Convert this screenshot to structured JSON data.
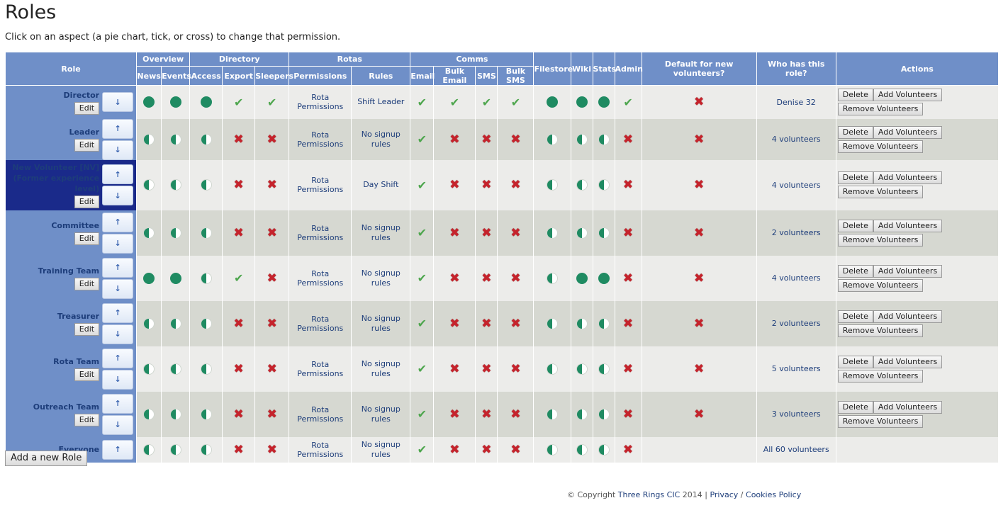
{
  "page": {
    "title": "Roles",
    "intro": "Click on an aspect (a pie chart, tick, or cross) to change that permission.",
    "add_role_label": "Add a new Role"
  },
  "headers": {
    "role": "Role",
    "overview": "Overview",
    "directory": "Directory",
    "rotas": "Rotas",
    "comms": "Comms",
    "filestore": "Filestore",
    "wiki": "Wiki",
    "stats": "Stats",
    "admin": "Admin",
    "default": "Default for new volunteers?",
    "who": "Who has this role?",
    "actions": "Actions",
    "news": "News",
    "events": "Events",
    "access": "Access",
    "export": "Export",
    "sleepers": "Sleepers",
    "permissions": "Permissions",
    "rules": "Rules",
    "email": "Email",
    "bulk_email": "Bulk Email",
    "sms": "SMS",
    "bulk_sms": "Bulk SMS"
  },
  "labels": {
    "edit": "Edit",
    "delete": "Delete",
    "add_volunteers": "Add Volunteers",
    "remove_volunteers": "Remove Volunteers",
    "up": "↑",
    "down": "↓",
    "rota_permissions": "Rota Permissions"
  },
  "colors": {
    "header": "#6f8fc8",
    "selected_role": "#1a2a8a",
    "pie": "#1f8b62",
    "tick": "#4ea64e",
    "cross": "#c6232c"
  },
  "roles": [
    {
      "name": "Director",
      "rules": "Shift Leader",
      "who": "Denise 32",
      "news": "full",
      "events": "full",
      "access": "full",
      "export": "tick",
      "sleepers": "tick",
      "email": "tick",
      "bulk_email": "tick",
      "sms": "tick",
      "bulk_sms": "tick",
      "filestore": "full",
      "wiki": "full",
      "stats": "full",
      "admin": "tick",
      "default": "cross"
    },
    {
      "name": "Leader",
      "rules": "No signup rules",
      "who": "4 volunteers",
      "news": "half",
      "events": "half",
      "access": "half",
      "export": "cross",
      "sleepers": "cross",
      "email": "tick",
      "bulk_email": "cross",
      "sms": "cross",
      "bulk_sms": "cross",
      "filestore": "half",
      "wiki": "half",
      "stats": "half",
      "admin": "cross",
      "default": "cross"
    },
    {
      "name": "New Volunteer [NV] (Former experience level)",
      "rules": "Day Shift",
      "who": "4 volunteers",
      "news": "half",
      "events": "half",
      "access": "half",
      "export": "cross",
      "sleepers": "cross",
      "email": "tick",
      "bulk_email": "cross",
      "sms": "cross",
      "bulk_sms": "cross",
      "filestore": "half",
      "wiki": "half",
      "stats": "half",
      "admin": "cross",
      "default": "cross"
    },
    {
      "name": "Committee",
      "rules": "No signup rules",
      "who": "2 volunteers",
      "news": "half",
      "events": "half",
      "access": "half",
      "export": "cross",
      "sleepers": "cross",
      "email": "tick",
      "bulk_email": "cross",
      "sms": "cross",
      "bulk_sms": "cross",
      "filestore": "half",
      "wiki": "half",
      "stats": "half",
      "admin": "cross",
      "default": "cross"
    },
    {
      "name": "Training Team",
      "rules": "No signup rules",
      "who": "4 volunteers",
      "news": "full",
      "events": "full",
      "access": "half",
      "export": "tick",
      "sleepers": "cross",
      "email": "tick",
      "bulk_email": "cross",
      "sms": "cross",
      "bulk_sms": "cross",
      "filestore": "half",
      "wiki": "full",
      "stats": "full",
      "admin": "cross",
      "default": "cross"
    },
    {
      "name": "Treasurer",
      "rules": "No signup rules",
      "who": "2 volunteers",
      "news": "half",
      "events": "half",
      "access": "half",
      "export": "cross",
      "sleepers": "cross",
      "email": "tick",
      "bulk_email": "cross",
      "sms": "cross",
      "bulk_sms": "cross",
      "filestore": "half",
      "wiki": "half",
      "stats": "half",
      "admin": "cross",
      "default": "cross"
    },
    {
      "name": "Rota Team",
      "rules": "No signup rules",
      "who": "5 volunteers",
      "news": "half",
      "events": "half",
      "access": "half",
      "export": "cross",
      "sleepers": "cross",
      "email": "tick",
      "bulk_email": "cross",
      "sms": "cross",
      "bulk_sms": "cross",
      "filestore": "half",
      "wiki": "half",
      "stats": "half",
      "admin": "cross",
      "default": "cross"
    },
    {
      "name": "Outreach Team",
      "rules": "No signup rules",
      "who": "3 volunteers",
      "news": "half",
      "events": "half",
      "access": "half",
      "export": "cross",
      "sleepers": "cross",
      "email": "tick",
      "bulk_email": "cross",
      "sms": "cross",
      "bulk_sms": "cross",
      "filestore": "half",
      "wiki": "half",
      "stats": "half",
      "admin": "cross",
      "default": "cross"
    },
    {
      "name": "Everyone",
      "rules": "No signup rules",
      "who": "All 60 volunteers",
      "news": "half",
      "events": "half",
      "access": "half",
      "export": "cross",
      "sleepers": "cross",
      "email": "tick",
      "bulk_email": "cross",
      "sms": "cross",
      "bulk_sms": "cross",
      "filestore": "half",
      "wiki": "half",
      "stats": "half",
      "admin": "cross",
      "default": ""
    }
  ],
  "footer": {
    "copyright": "© Copyright",
    "company": "Three Rings CIC",
    "year": "2014",
    "sep1": "|",
    "privacy": "Privacy",
    "sep2": "/",
    "cookies": "Cookies Policy"
  }
}
